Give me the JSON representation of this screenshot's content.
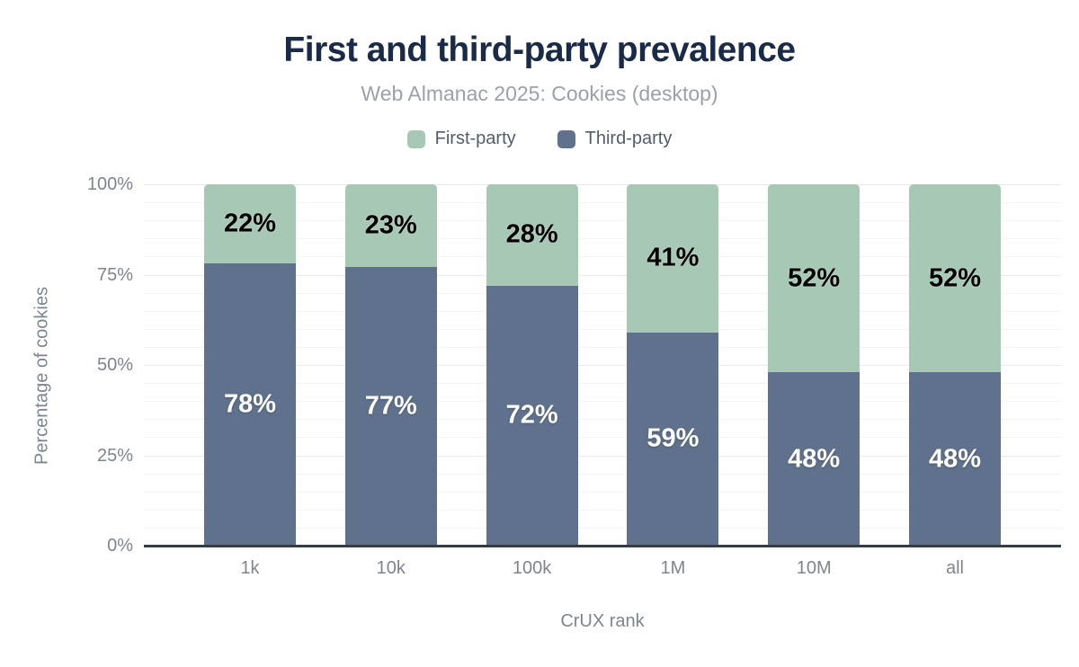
{
  "header": {
    "title": "First and third-party prevalence",
    "subtitle": "Web Almanac 2025: Cookies (desktop)"
  },
  "legend": {
    "items": [
      {
        "label": "First-party",
        "color": "#a6c8b4"
      },
      {
        "label": "Third-party",
        "color": "#5f718c"
      }
    ]
  },
  "axes": {
    "y_title": "Percentage of cookies",
    "x_title": "CrUX rank",
    "y_tick_labels": [
      "100%",
      "75%",
      "50%",
      "25%",
      "0%"
    ],
    "x_tick_labels": [
      "1k",
      "10k",
      "100k",
      "1M",
      "10M",
      "all"
    ]
  },
  "colors": {
    "title": "#1a2b49",
    "subtitle": "#9aa1a9",
    "axis_text": "#7d858f",
    "axis_line": "#363c45",
    "first_party": "#a6c8b4",
    "third_party": "#5f718c"
  },
  "chart_data": {
    "type": "bar",
    "stacked": true,
    "title": "First and third-party prevalence",
    "subtitle": "Web Almanac 2025: Cookies (desktop)",
    "xlabel": "CrUX rank",
    "ylabel": "Percentage of cookies",
    "categories": [
      "1k",
      "10k",
      "100k",
      "1M",
      "10M",
      "all"
    ],
    "series": [
      {
        "name": "First-party",
        "color": "#a6c8b4",
        "values": [
          22,
          23,
          28,
          41,
          52,
          52
        ]
      },
      {
        "name": "Third-party",
        "color": "#5f718c",
        "values": [
          78,
          77,
          72,
          59,
          48,
          48
        ]
      }
    ],
    "data_label_format": "{value}%",
    "ylim": [
      0,
      100
    ],
    "y_tick_interval": 25,
    "grid": "horizontal minor gridlines every 5%, major every 25%",
    "legend_position": "top-center"
  }
}
